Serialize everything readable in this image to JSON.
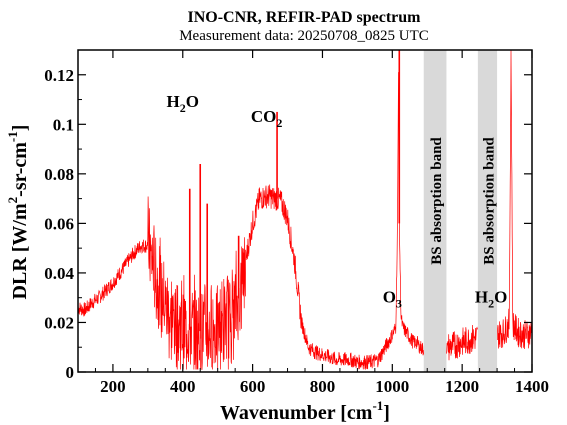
{
  "chart_data": {
    "type": "line",
    "title": "INO-CNR, REFIR-PAD spectrum",
    "subtitle": "Measurement data: 20250708_0825 UTC",
    "xlabel": "Wavenumber [cm",
    "xlabel_sup": "-1",
    "xlabel_end": "]",
    "ylabel_parts": {
      "a": "DLR [W/m",
      "b": "2",
      "c": "-sr-cm",
      "d": "-1",
      "e": "]"
    },
    "xlim": [
      100,
      1400
    ],
    "ylim": [
      0,
      0.13
    ],
    "grid": false,
    "line_color": "#ff0000",
    "band_color": "#d9d9d9",
    "xticks": [
      {
        "v": 200,
        "label": "200"
      },
      {
        "v": 400,
        "label": "400"
      },
      {
        "v": 600,
        "label": "600"
      },
      {
        "v": 800,
        "label": "800"
      },
      {
        "v": 1000,
        "label": "1000"
      },
      {
        "v": 1200,
        "label": "1200"
      },
      {
        "v": 1400,
        "label": "1400"
      }
    ],
    "yticks": [
      {
        "v": 0,
        "label": "0"
      },
      {
        "v": 0.02,
        "label": "0.02"
      },
      {
        "v": 0.04,
        "label": "0.04"
      },
      {
        "v": 0.06,
        "label": "0.06"
      },
      {
        "v": 0.08,
        "label": "0.08"
      },
      {
        "v": 0.1,
        "label": "0.1"
      },
      {
        "v": 0.12,
        "label": "0.12"
      }
    ],
    "bands": [
      {
        "x0": 1090,
        "x1": 1155,
        "label": "BS absorption band"
      },
      {
        "x0": 1245,
        "x1": 1300,
        "label": "BS absorption band"
      }
    ],
    "annotations": [
      {
        "x": 400,
        "y": 0.107,
        "main": "H",
        "sub": "2",
        "tail": "O"
      },
      {
        "x": 640,
        "y": 0.101,
        "main": "CO",
        "sub": "2",
        "tail": ""
      },
      {
        "x": 1000,
        "y": 0.028,
        "main": "O",
        "sub": "3",
        "tail": ""
      },
      {
        "x": 1283,
        "y": 0.028,
        "main": "H",
        "sub": "2",
        "tail": "O"
      }
    ],
    "series": [
      {
        "x": [
          100,
          120,
          140,
          160,
          180,
          200,
          220,
          240,
          260,
          280,
          300,
          320,
          340,
          360,
          380,
          400,
          420,
          440,
          460,
          480,
          500,
          520,
          540,
          560,
          580,
          600,
          620,
          640,
          650,
          660,
          670,
          680,
          690,
          700,
          720,
          740,
          760,
          780,
          800,
          820,
          840,
          860,
          880,
          900,
          920,
          940,
          960,
          980,
          1000,
          1010,
          1015,
          1018,
          1020,
          1025,
          1030,
          1040,
          1050,
          1060,
          1070,
          1080,
          1090,
          1160,
          1180,
          1200,
          1220,
          1240,
          1300,
          1320,
          1335,
          1340,
          1345,
          1350,
          1360,
          1380,
          1400
        ],
        "y": [
          0.026,
          0.025,
          0.028,
          0.03,
          0.033,
          0.036,
          0.04,
          0.044,
          0.048,
          0.051,
          0.051,
          0.04,
          0.03,
          0.024,
          0.02,
          0.018,
          0.017,
          0.016,
          0.017,
          0.017,
          0.018,
          0.02,
          0.024,
          0.03,
          0.045,
          0.06,
          0.07,
          0.071,
          0.071,
          0.07,
          0.07,
          0.069,
          0.066,
          0.062,
          0.045,
          0.02,
          0.01,
          0.008,
          0.007,
          0.006,
          0.005,
          0.005,
          0.005,
          0.004,
          0.004,
          0.004,
          0.005,
          0.01,
          0.015,
          0.018,
          0.06,
          0.13,
          0.06,
          0.022,
          0.018,
          0.016,
          0.014,
          0.012,
          0.012,
          0.01,
          0.009,
          0.01,
          0.011,
          0.012,
          0.013,
          0.014,
          0.015,
          0.016,
          0.02,
          0.13,
          0.02,
          0.018,
          0.016,
          0.015,
          0.016
        ]
      }
    ],
    "spikes": [
      {
        "x": 420,
        "y": 0.074
      },
      {
        "x": 450,
        "y": 0.084
      },
      {
        "x": 470,
        "y": 0.068
      },
      {
        "x": 560,
        "y": 0.055
      },
      {
        "x": 670,
        "y": 0.105
      },
      {
        "x": 1020,
        "y": 0.13
      },
      {
        "x": 1340,
        "y": 0.13
      }
    ]
  }
}
